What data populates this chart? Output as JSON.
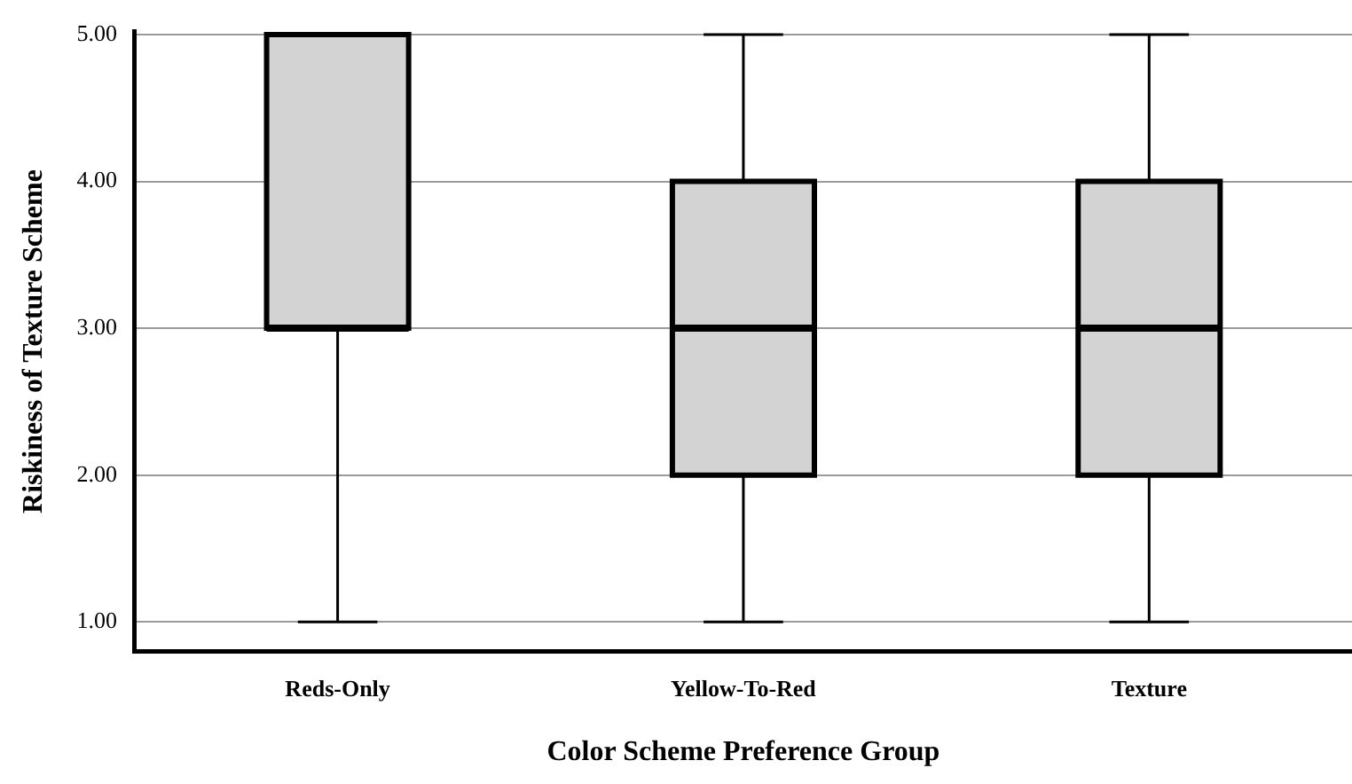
{
  "chart_data": {
    "type": "box",
    "xlabel": "Color Scheme Preference Group",
    "ylabel": "Riskiness of Texture Scheme",
    "categories": [
      "Reds-Only",
      "Yellow-To-Red",
      "Texture"
    ],
    "series": [
      {
        "color": "#d3d3d3",
        "boxes": [
          {
            "low": 1,
            "q1": 3,
            "median": 3,
            "q3": 5,
            "high": 5
          },
          {
            "low": 1,
            "q1": 2,
            "median": 3,
            "q3": 4,
            "high": 5
          },
          {
            "low": 1,
            "q1": 2,
            "median": 3,
            "q3": 4,
            "high": 5
          }
        ]
      }
    ],
    "ylim": [
      0.8,
      5.02
    ],
    "yticks": [
      {
        "value": 1,
        "label": "1.00"
      },
      {
        "value": 2,
        "label": "2.00"
      },
      {
        "value": 3,
        "label": "3.00"
      },
      {
        "value": 4,
        "label": "4.00"
      },
      {
        "value": 5,
        "label": "5.00"
      }
    ],
    "grid": "y"
  }
}
